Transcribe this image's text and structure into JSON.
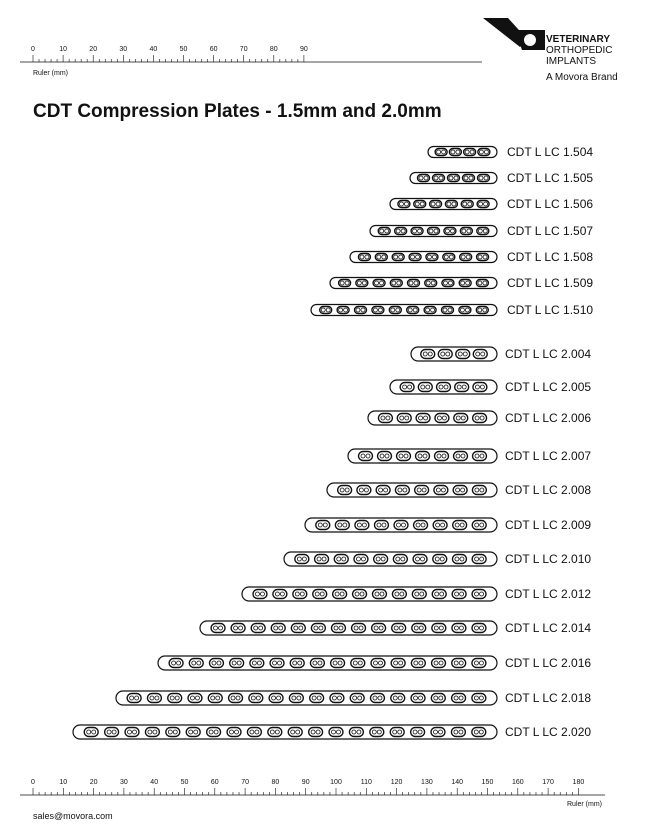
{
  "logo": {
    "line1": "VETERINARY",
    "line2": "ORTHOPEDIC",
    "line3": "IMPLANTS",
    "brand": "A Movora Brand"
  },
  "top_ruler": {
    "labels": [
      "0",
      "10",
      "20",
      "30",
      "40",
      "50",
      "60",
      "70",
      "80",
      "90"
    ],
    "caption": "Ruler (mm)"
  },
  "title": "CDT Compression Plates - 1.5mm and 2.0mm",
  "plates": [
    "CDT L LC 1.504",
    "CDT L LC 1.505",
    "CDT L LC 1.506",
    "CDT L LC 1.507",
    "CDT L LC 1.508",
    "CDT L LC 1.509",
    "CDT L LC 1.510",
    "CDT L LC 2.004",
    "CDT L LC 2.005",
    "CDT L LC 2.006",
    "CDT L LC 2.007",
    "CDT L LC 2.008",
    "CDT L LC 2.009",
    "CDT L LC 2.010",
    "CDT L LC 2.012",
    "CDT L LC 2.014",
    "CDT L LC 2.016",
    "CDT L LC 2.018",
    "CDT L LC 2.020"
  ],
  "bottom_ruler": {
    "labels": [
      "0",
      "10",
      "20",
      "30",
      "40",
      "50",
      "60",
      "70",
      "80",
      "90",
      "100",
      "110",
      "120",
      "130",
      "140",
      "150",
      "160",
      "170",
      "180"
    ],
    "caption": "Ruler (mm)"
  },
  "footer": {
    "email": "sales@movora.com"
  }
}
